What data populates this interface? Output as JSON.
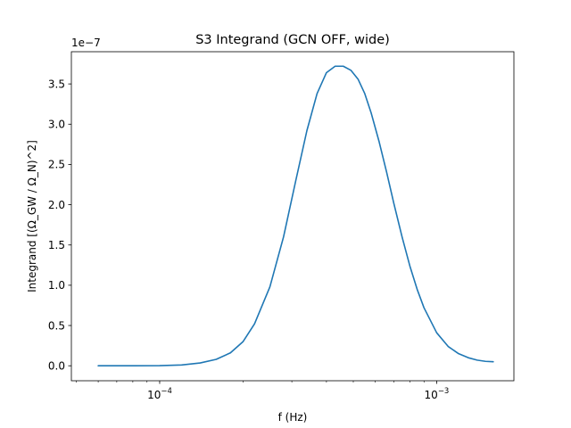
{
  "chart_data": {
    "type": "line",
    "title": "S3 Integrand (GCN OFF, wide)",
    "xlabel": "f (Hz)",
    "ylabel": "Integrand [(Ω_GW / Ω_N)^2]",
    "y_offset_label": "1e−7",
    "x_scale": "log",
    "xlim": [
      4.8e-05,
      0.0019
    ],
    "ylim": [
      -1.86e-08,
      3.9e-07
    ],
    "x_ticks": [
      {
        "value": 0.0001,
        "base": "10",
        "exp": "−4"
      },
      {
        "value": 0.001,
        "base": "10",
        "exp": "−3"
      }
    ],
    "y_ticks": [
      {
        "value": 0.0,
        "label": "0.0"
      },
      {
        "value": 5e-08,
        "label": "0.5"
      },
      {
        "value": 1e-07,
        "label": "1.0"
      },
      {
        "value": 1.5e-07,
        "label": "1.5"
      },
      {
        "value": 2e-07,
        "label": "2.0"
      },
      {
        "value": 2.5e-07,
        "label": "2.5"
      },
      {
        "value": 3e-07,
        "label": "3.0"
      },
      {
        "value": 3.5e-07,
        "label": "3.5"
      }
    ],
    "grid": false,
    "series": [
      {
        "color": "#1f77b4",
        "x": [
          6e-05,
          8e-05,
          0.0001,
          0.00012,
          0.00014,
          0.00016,
          0.00018,
          0.0002,
          0.00022,
          0.00025,
          0.00028,
          0.00031,
          0.00034,
          0.00037,
          0.0004,
          0.00043,
          0.00046,
          0.00049,
          0.00052,
          0.00055,
          0.00058,
          0.00062,
          0.00066,
          0.0007,
          0.00075,
          0.0008,
          0.00085,
          0.0009,
          0.001,
          0.0011,
          0.0012,
          0.0013,
          0.0014,
          0.0015,
          0.0016
        ],
        "y": [
          0.0,
          0.0,
          2e-10,
          1e-09,
          3.5e-09,
          8e-09,
          1.6e-08,
          3e-08,
          5.2e-08,
          9.8e-08,
          1.6e-07,
          2.3e-07,
          2.92e-07,
          3.38e-07,
          3.64e-07,
          3.72e-07,
          3.72e-07,
          3.67e-07,
          3.56e-07,
          3.38e-07,
          3.14e-07,
          2.78e-07,
          2.4e-07,
          2.02e-07,
          1.6e-07,
          1.24e-07,
          9.5e-08,
          7.2e-08,
          4.1e-08,
          2.4e-08,
          1.5e-08,
          1e-08,
          7e-09,
          5.5e-09,
          5e-09
        ]
      }
    ]
  }
}
